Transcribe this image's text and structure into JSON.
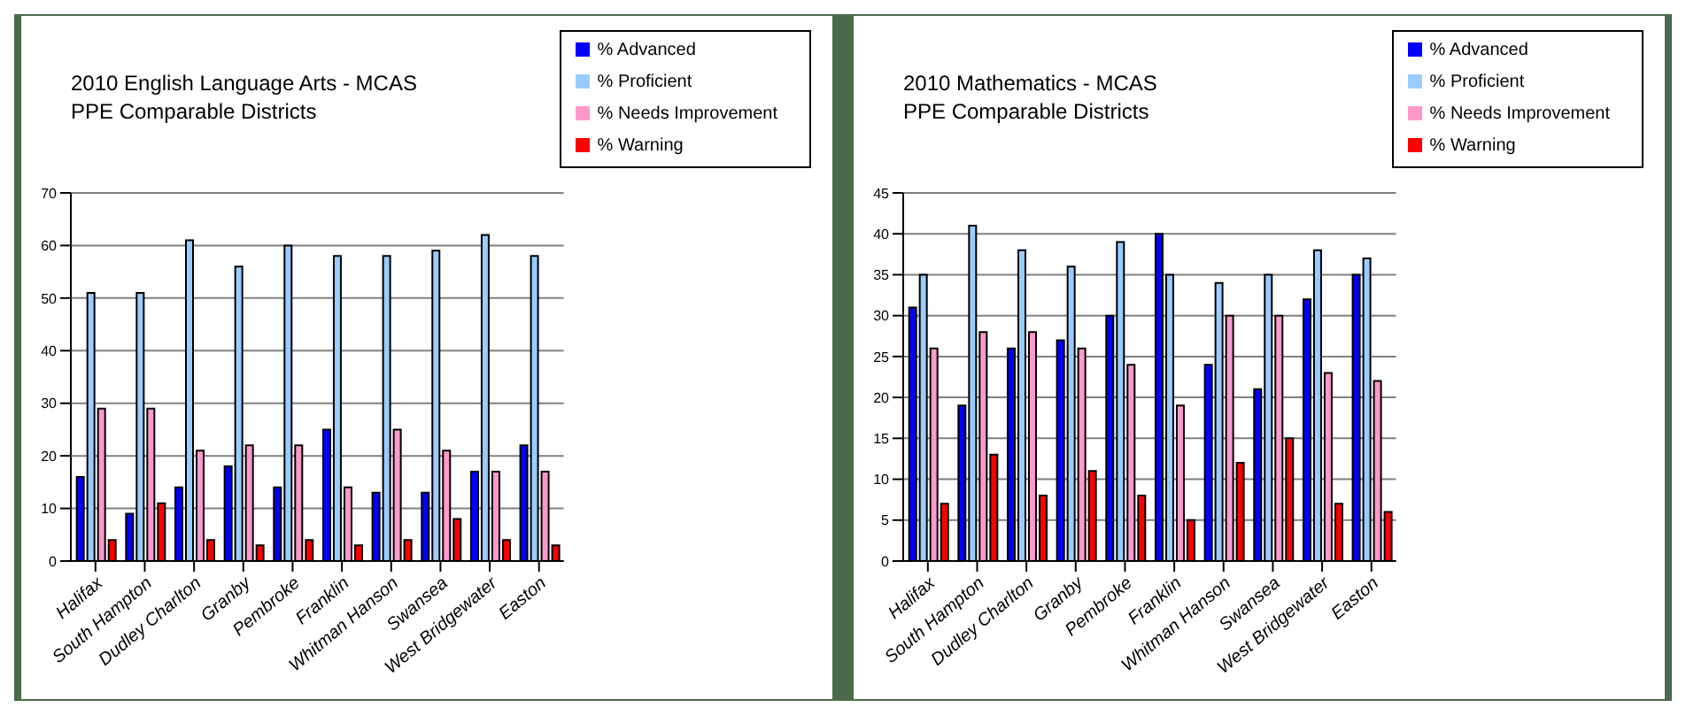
{
  "chart_data": [
    {
      "type": "bar",
      "title": "2010 English Language Arts - MCAS",
      "subtitle": "PPE Comparable Districts",
      "categories": [
        "Halifax",
        "South Hampton",
        "Dudley Charlton",
        "Granby",
        "Pembroke",
        "Franklin",
        "Whitman Hanson",
        "Swansea",
        "West Bridgewater",
        "Easton"
      ],
      "series": [
        {
          "name": "% Advanced",
          "color": "#0000ff",
          "values": [
            16,
            9,
            14,
            18,
            14,
            25,
            13,
            13,
            17,
            22
          ]
        },
        {
          "name": "% Proficient",
          "color": "#99ccff",
          "values": [
            51,
            51,
            61,
            56,
            60,
            58,
            58,
            59,
            62,
            58
          ]
        },
        {
          "name": "% Needs Improvement",
          "color": "#ff99cc",
          "values": [
            29,
            29,
            21,
            22,
            22,
            14,
            25,
            21,
            17,
            17
          ]
        },
        {
          "name": "% Warning",
          "color": "#ff0000",
          "values": [
            4,
            11,
            4,
            3,
            4,
            3,
            4,
            8,
            4,
            3
          ]
        }
      ],
      "ylim": [
        0,
        70
      ],
      "yticks": [
        0,
        10,
        20,
        30,
        40,
        50,
        60,
        70
      ],
      "grid": "y",
      "legend": "top right"
    },
    {
      "type": "bar",
      "title": "2010 Mathematics - MCAS",
      "subtitle": "PPE Comparable Districts",
      "categories": [
        "Halifax",
        "South Hampton",
        "Dudley Charlton",
        "Granby",
        "Pembroke",
        "Franklin",
        "Whitman Hanson",
        "Swansea",
        "West Bridgewater",
        "Easton"
      ],
      "series": [
        {
          "name": "% Advanced",
          "color": "#0000ff",
          "values": [
            31,
            19,
            26,
            27,
            30,
            40,
            24,
            21,
            32,
            35
          ]
        },
        {
          "name": "% Proficient",
          "color": "#99ccff",
          "values": [
            35,
            41,
            38,
            36,
            39,
            35,
            34,
            35,
            38,
            37
          ]
        },
        {
          "name": "% Needs Improvement",
          "color": "#ff99cc",
          "values": [
            26,
            28,
            28,
            26,
            24,
            19,
            30,
            30,
            23,
            22
          ]
        },
        {
          "name": "% Warning",
          "color": "#ff0000",
          "values": [
            7,
            13,
            8,
            11,
            8,
            5,
            12,
            15,
            7,
            6
          ]
        }
      ],
      "ylim": [
        0,
        45
      ],
      "yticks": [
        0,
        5,
        10,
        15,
        20,
        25,
        30,
        35,
        40,
        45
      ],
      "grid": "y",
      "legend": "top right"
    }
  ]
}
